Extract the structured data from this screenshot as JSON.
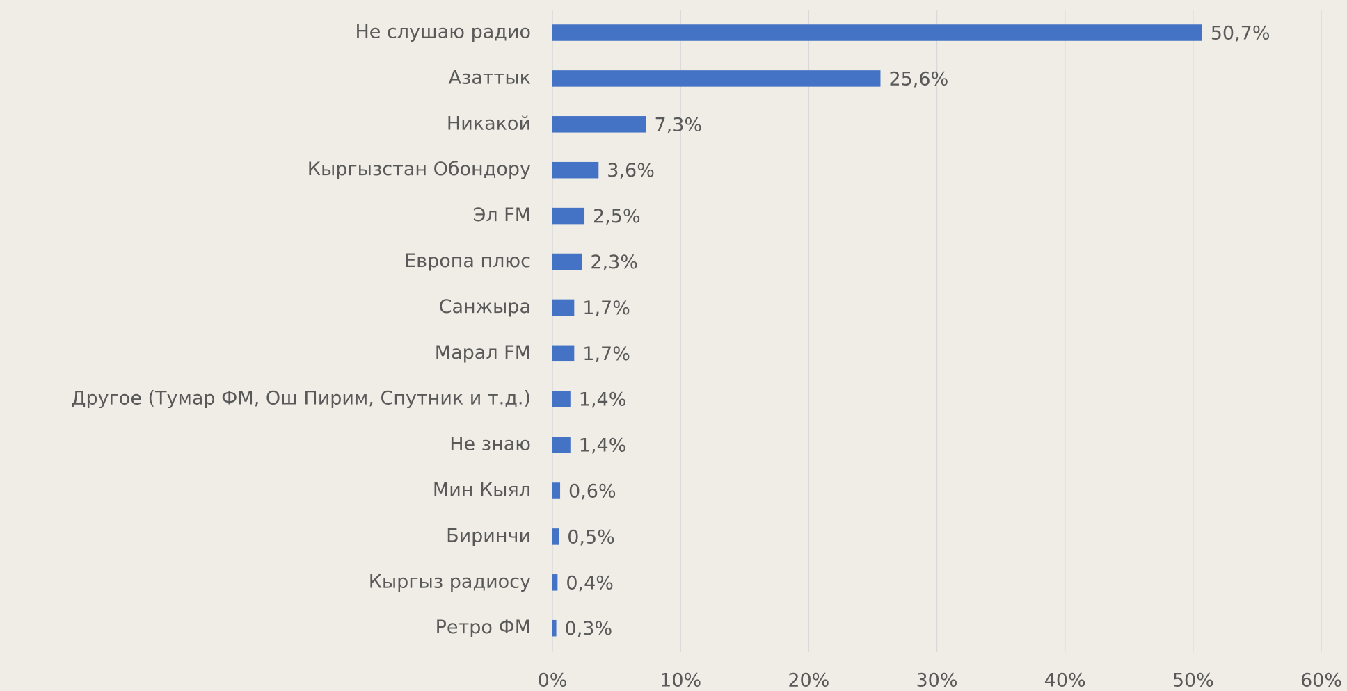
{
  "chart_data": {
    "type": "bar",
    "orientation": "horizontal",
    "categories": [
      "Не слушаю радио",
      "Азаттык",
      "Никакой",
      "Кыргызстан Обондору",
      "Эл FM",
      "Европа плюс",
      "Санжыра",
      "Марал FM",
      "Другое (Тумар ФМ, Ош Пирим, Спутник и т.д.)",
      "Не знаю",
      "Мин Кыял",
      "Биринчи",
      "Кыргыз радиосу",
      "Ретро ФМ"
    ],
    "values": [
      50.7,
      25.6,
      7.3,
      3.6,
      2.5,
      2.3,
      1.7,
      1.7,
      1.4,
      1.4,
      0.6,
      0.5,
      0.4,
      0.3
    ],
    "value_labels": [
      "50,7%",
      "25,6%",
      "7,3%",
      "3,6%",
      "2,5%",
      "2,3%",
      "1,7%",
      "1,7%",
      "1,4%",
      "1,4%",
      "0,6%",
      "0,5%",
      "0,4%",
      "0,3%"
    ],
    "color": "#4472c4",
    "xlim": [
      0,
      60
    ],
    "xticks": [
      {
        "value": 0,
        "label": "0%"
      },
      {
        "value": 10,
        "label": "10%"
      },
      {
        "value": 20,
        "label": "20%"
      },
      {
        "value": 30,
        "label": "30%"
      },
      {
        "value": 40,
        "label": "40%"
      },
      {
        "value": 50,
        "label": "50%"
      },
      {
        "value": 60,
        "label": "60%"
      }
    ],
    "grid": true
  }
}
